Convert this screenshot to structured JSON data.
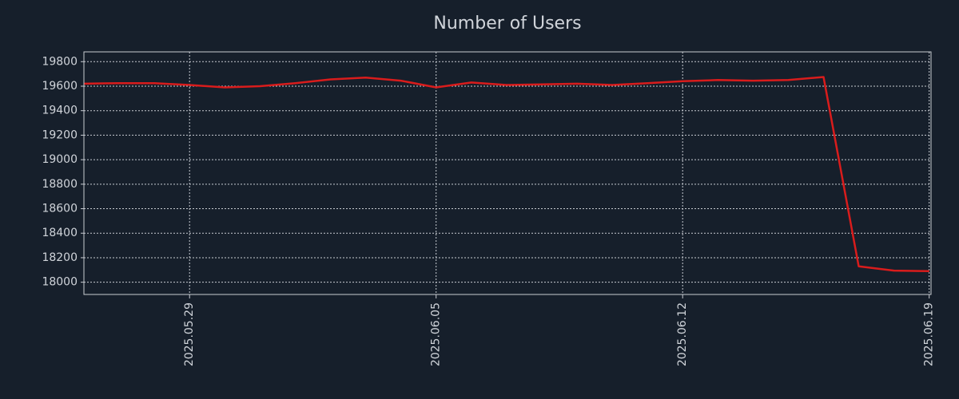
{
  "chart_data": {
    "type": "line",
    "title": "Number of Users",
    "x": [
      "2025.05.26",
      "2025.05.27",
      "2025.05.28",
      "2025.05.29",
      "2025.05.30",
      "2025.05.31",
      "2025.06.01",
      "2025.06.02",
      "2025.06.03",
      "2025.06.04",
      "2025.06.05",
      "2025.06.06",
      "2025.06.07",
      "2025.06.08",
      "2025.06.09",
      "2025.06.10",
      "2025.06.11",
      "2025.06.12",
      "2025.06.13",
      "2025.06.14",
      "2025.06.15",
      "2025.06.16",
      "2025.06.17",
      "2025.06.18",
      "2025.06.19"
    ],
    "series": [
      {
        "color": "#d91c1c",
        "values": [
          19620,
          19625,
          19625,
          19610,
          19590,
          19600,
          19625,
          19655,
          19670,
          19645,
          19590,
          19630,
          19610,
          19615,
          19620,
          19610,
          19625,
          19640,
          19650,
          19645,
          19650,
          19675,
          18130,
          18095,
          18090
        ]
      }
    ],
    "xlim": [
      "2025.05.26",
      "2025.06.19"
    ],
    "xticks": [
      "2025.05.29",
      "2025.06.05",
      "2025.06.12",
      "2025.06.19"
    ],
    "ylim": [
      17900,
      19880
    ],
    "yticks": [
      18000,
      18200,
      18400,
      18600,
      18800,
      19000,
      19200,
      19400,
      19600,
      19800
    ],
    "grid": true
  }
}
